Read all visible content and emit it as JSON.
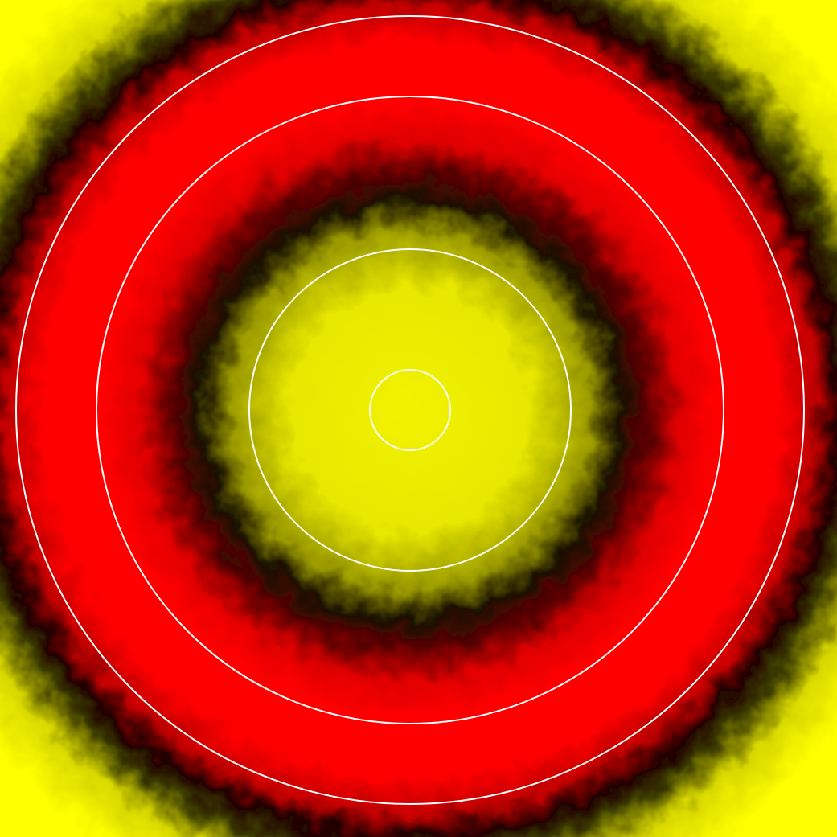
{
  "image": {
    "kind": "radial intensity map with concentric overlay circles",
    "colors": {
      "outer_field": "#ffff00",
      "ring_band": "#ff0000",
      "dark_transition": "#000000",
      "core_field": "#f2f200",
      "overlay_circles": "#ffffff"
    },
    "overlay_circle_count": 4
  }
}
